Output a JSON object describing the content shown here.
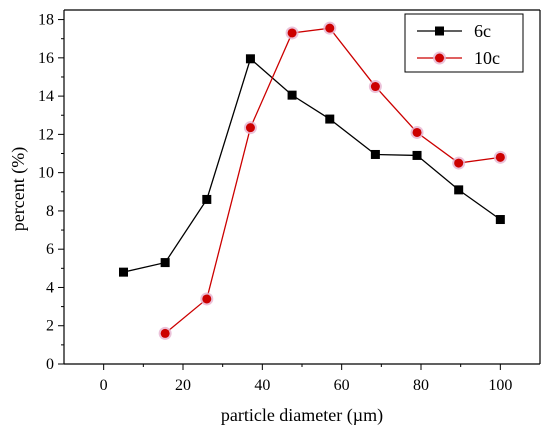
{
  "chart_data": {
    "type": "line",
    "title": "",
    "xlabel": "particle diameter (µm)",
    "ylabel": "percent (%)",
    "xlim": [
      -10,
      110
    ],
    "ylim": [
      0,
      18.5
    ],
    "x_ticks": [
      0,
      20,
      40,
      60,
      80,
      100
    ],
    "y_ticks": [
      0,
      2,
      4,
      6,
      8,
      10,
      12,
      14,
      16,
      18
    ],
    "grid": false,
    "legend_position": "top-right",
    "series": [
      {
        "name": "6c",
        "color": "#000000",
        "marker": "square",
        "x": [
          5,
          15.5,
          26,
          37,
          47.5,
          57,
          68.5,
          79,
          89.5,
          100
        ],
        "y": [
          4.8,
          5.3,
          8.6,
          15.95,
          14.05,
          12.8,
          10.95,
          10.9,
          9.1,
          7.55
        ]
      },
      {
        "name": "10c",
        "color": "#cc0000",
        "marker": "circle",
        "x": [
          15.5,
          26,
          37,
          47.5,
          57,
          68.5,
          79,
          89.5,
          100
        ],
        "y": [
          1.6,
          3.4,
          12.35,
          17.3,
          17.55,
          14.5,
          12.1,
          10.5,
          10.8
        ]
      }
    ]
  }
}
